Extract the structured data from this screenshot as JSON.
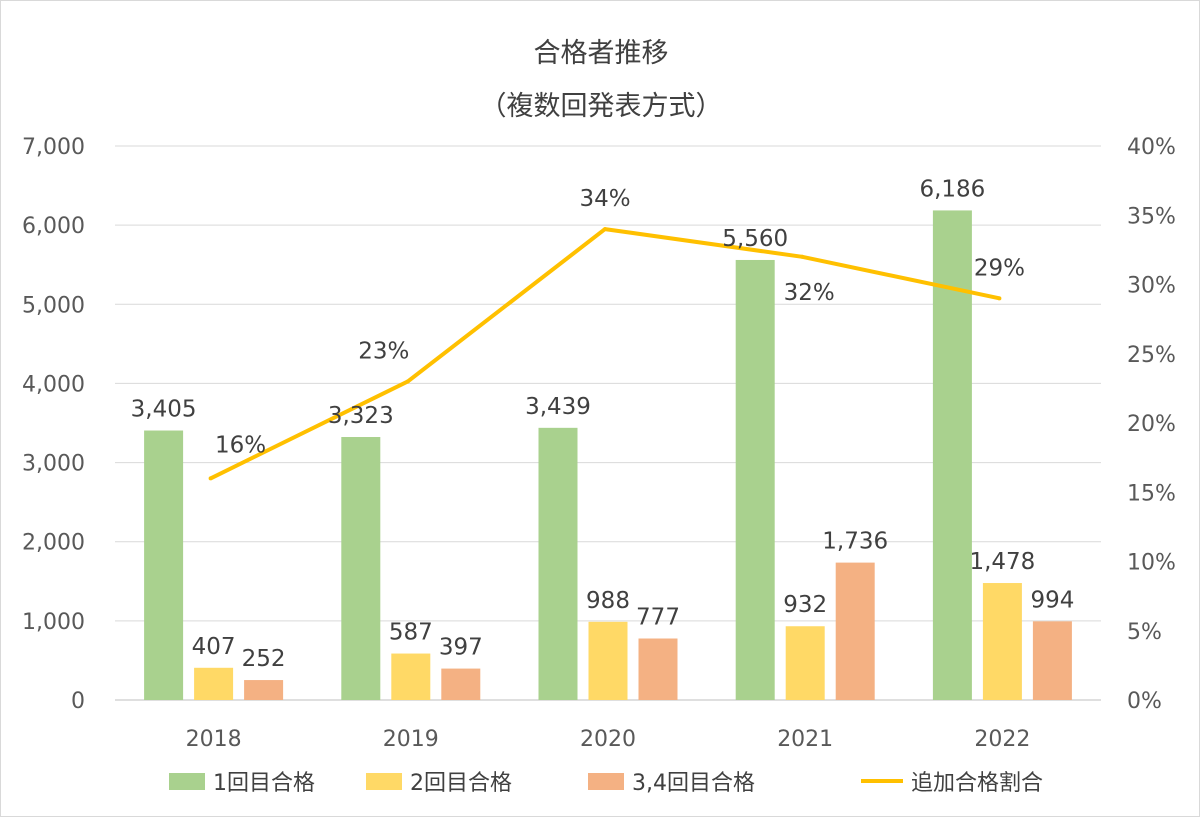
{
  "chart_data": {
    "type": "bar",
    "title": "合格者推移",
    "subtitle": "（複数回発表方式）",
    "categories": [
      "2018",
      "2019",
      "2020",
      "2021",
      "2022"
    ],
    "series": [
      {
        "name": "1回目合格",
        "kind": "bar",
        "axis": "left",
        "color": "#a9d18e",
        "values": [
          3405,
          3323,
          3439,
          5560,
          6186
        ],
        "labels": [
          "3,405",
          "3,323",
          "3,439",
          "5,560",
          "6,186"
        ]
      },
      {
        "name": "2回目合格",
        "kind": "bar",
        "axis": "left",
        "color": "#ffd966",
        "values": [
          407,
          587,
          988,
          932,
          1478
        ],
        "labels": [
          "407",
          "587",
          "988",
          "932",
          "1,478"
        ]
      },
      {
        "name": "3,4回目合格",
        "kind": "bar",
        "axis": "left",
        "color": "#f4b183",
        "values": [
          252,
          397,
          777,
          1736,
          994
        ],
        "labels": [
          "252",
          "397",
          "777",
          "1,736",
          "994"
        ]
      },
      {
        "name": "追加合格割合",
        "kind": "line",
        "axis": "right",
        "color": "#ffc000",
        "values": [
          0.16,
          0.23,
          0.34,
          0.32,
          0.29
        ],
        "labels": [
          "16%",
          "23%",
          "34%",
          "32%",
          "29%"
        ]
      }
    ],
    "y_left": {
      "min": 0,
      "max": 7000,
      "ticks": [
        "0",
        "1,000",
        "2,000",
        "3,000",
        "4,000",
        "5,000",
        "6,000",
        "7,000"
      ]
    },
    "y_right": {
      "min": 0,
      "max": 0.4,
      "ticks": [
        "0%",
        "5%",
        "10%",
        "15%",
        "20%",
        "25%",
        "30%",
        "35%",
        "40%"
      ]
    },
    "grid": true,
    "legend_position": "bottom"
  }
}
